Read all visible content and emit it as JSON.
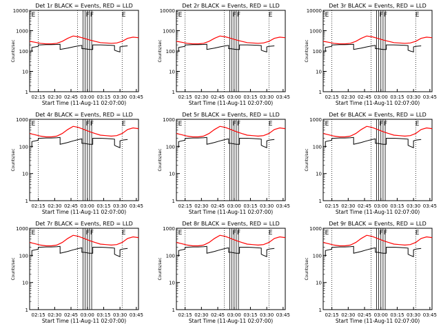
{
  "chart_data": [
    {
      "type": "line",
      "title": "Det 1r BLACK = Events, RED = LLD",
      "xlabel": "Start Time (11-Aug-11 02:07:00)",
      "ylabel": "Counts/sec",
      "ymax": 10000,
      "y_ticks": [
        "1",
        "10",
        "100",
        "1000",
        "10000"
      ]
    },
    {
      "type": "line",
      "title": "Det 2r BLACK = Events, RED = LLD",
      "xlabel": "Start Time (11-Aug-11 02:07:00)",
      "ylabel": "Counts/sec",
      "ymax": 10000,
      "y_ticks": [
        "1",
        "10",
        "100",
        "1000",
        "10000"
      ]
    },
    {
      "type": "line",
      "title": "Det 3r BLACK = Events, RED = LLD",
      "xlabel": "Start Time (11-Aug-11 02:07:00)",
      "ylabel": "Counts/sec",
      "ymax": 10000,
      "y_ticks": [
        "1",
        "10",
        "100",
        "1000",
        "10000"
      ]
    },
    {
      "type": "line",
      "title": "Det 4r BLACK = Events, RED = LLD",
      "xlabel": "Start Time (11-Aug-11 02:07:00)",
      "ylabel": "Counts/sec",
      "ymax": 1000,
      "y_ticks": [
        "1",
        "10",
        "100",
        "1000"
      ]
    },
    {
      "type": "line",
      "title": "Det 5r BLACK = Events, RED = LLD",
      "xlabel": "Start Time (11-Aug-11 02:07:00)",
      "ylabel": "Counts/sec",
      "ymax": 1000,
      "y_ticks": [
        "1",
        "10",
        "100",
        "1000"
      ]
    },
    {
      "type": "line",
      "title": "Det 6r BLACK = Events, RED = LLD",
      "xlabel": "Start Time (11-Aug-11 02:07:00)",
      "ylabel": "Counts/sec",
      "ymax": 1000,
      "y_ticks": [
        "1",
        "10",
        "100",
        "1000"
      ]
    },
    {
      "type": "line",
      "title": "Det 7r BLACK = Events, RED = LLD",
      "xlabel": "Start Time (11-Aug-11 02:07:00)",
      "ylabel": "Counts/sec",
      "ymax": 1000,
      "y_ticks": [
        "1",
        "10",
        "100",
        "1000"
      ]
    },
    {
      "type": "line",
      "title": "Det 8r BLACK = Events, RED = LLD",
      "xlabel": "Start Time (11-Aug-11 02:07:00)",
      "ylabel": "Counts/sec",
      "ymax": 1000,
      "y_ticks": [
        "1",
        "10",
        "100",
        "1000"
      ]
    },
    {
      "type": "line",
      "title": "Det 9r BLACK = Events, RED = LLD",
      "xlabel": "Start Time (11-Aug-11 02:07:00)",
      "ylabel": "Counts/sec",
      "ymax": 1000,
      "y_ticks": [
        "1",
        "10",
        "100",
        "1000"
      ]
    }
  ],
  "shared": {
    "x_ticks": [
      "02:15",
      "02:30",
      "02:45",
      "03:00",
      "03:15",
      "03:30",
      "03:45"
    ],
    "x_tick_minutes": [
      8,
      23,
      38,
      53,
      68,
      83,
      98
    ],
    "x_range_minutes": [
      0,
      100
    ],
    "dotted_gridlines_minutes": [
      8,
      44,
      85
    ],
    "event_markers": [
      {
        "label": "E",
        "at_minutes": 1
      },
      {
        "label": "F",
        "at_minutes": 51
      },
      {
        "label": "F",
        "at_minutes": 55
      },
      {
        "label": "E",
        "at_minutes": 84
      }
    ],
    "saa_lines_minutes": [
      49,
      51,
      53,
      55,
      57
    ],
    "series": [
      {
        "name": "LLD",
        "color": "#ff0000",
        "x": [
          0,
          5,
          10,
          15,
          20,
          25,
          30,
          35,
          40,
          45,
          50,
          55,
          60,
          65,
          70,
          75,
          80,
          85,
          90,
          95,
          100
        ],
        "y": [
          300,
          270,
          240,
          225,
          225,
          240,
          300,
          420,
          550,
          500,
          420,
          350,
          300,
          260,
          250,
          240,
          250,
          300,
          420,
          480,
          450
        ]
      },
      {
        "name": "Events",
        "color": "#000000",
        "x": [
          2,
          2,
          5,
          8,
          8,
          10,
          15,
          20,
          25,
          28,
          28,
          30,
          35,
          40,
          45,
          48,
          48,
          50,
          55,
          58,
          58,
          60,
          65,
          70,
          75,
          78,
          78,
          80,
          83,
          83,
          85,
          90
        ],
        "y": [
          90,
          150,
          160,
          170,
          200,
          200,
          205,
          205,
          210,
          215,
          120,
          125,
          140,
          160,
          180,
          190,
          130,
          130,
          120,
          120,
          200,
          200,
          200,
          195,
          190,
          185,
          110,
          100,
          90,
          160,
          170,
          180
        ]
      }
    ]
  }
}
